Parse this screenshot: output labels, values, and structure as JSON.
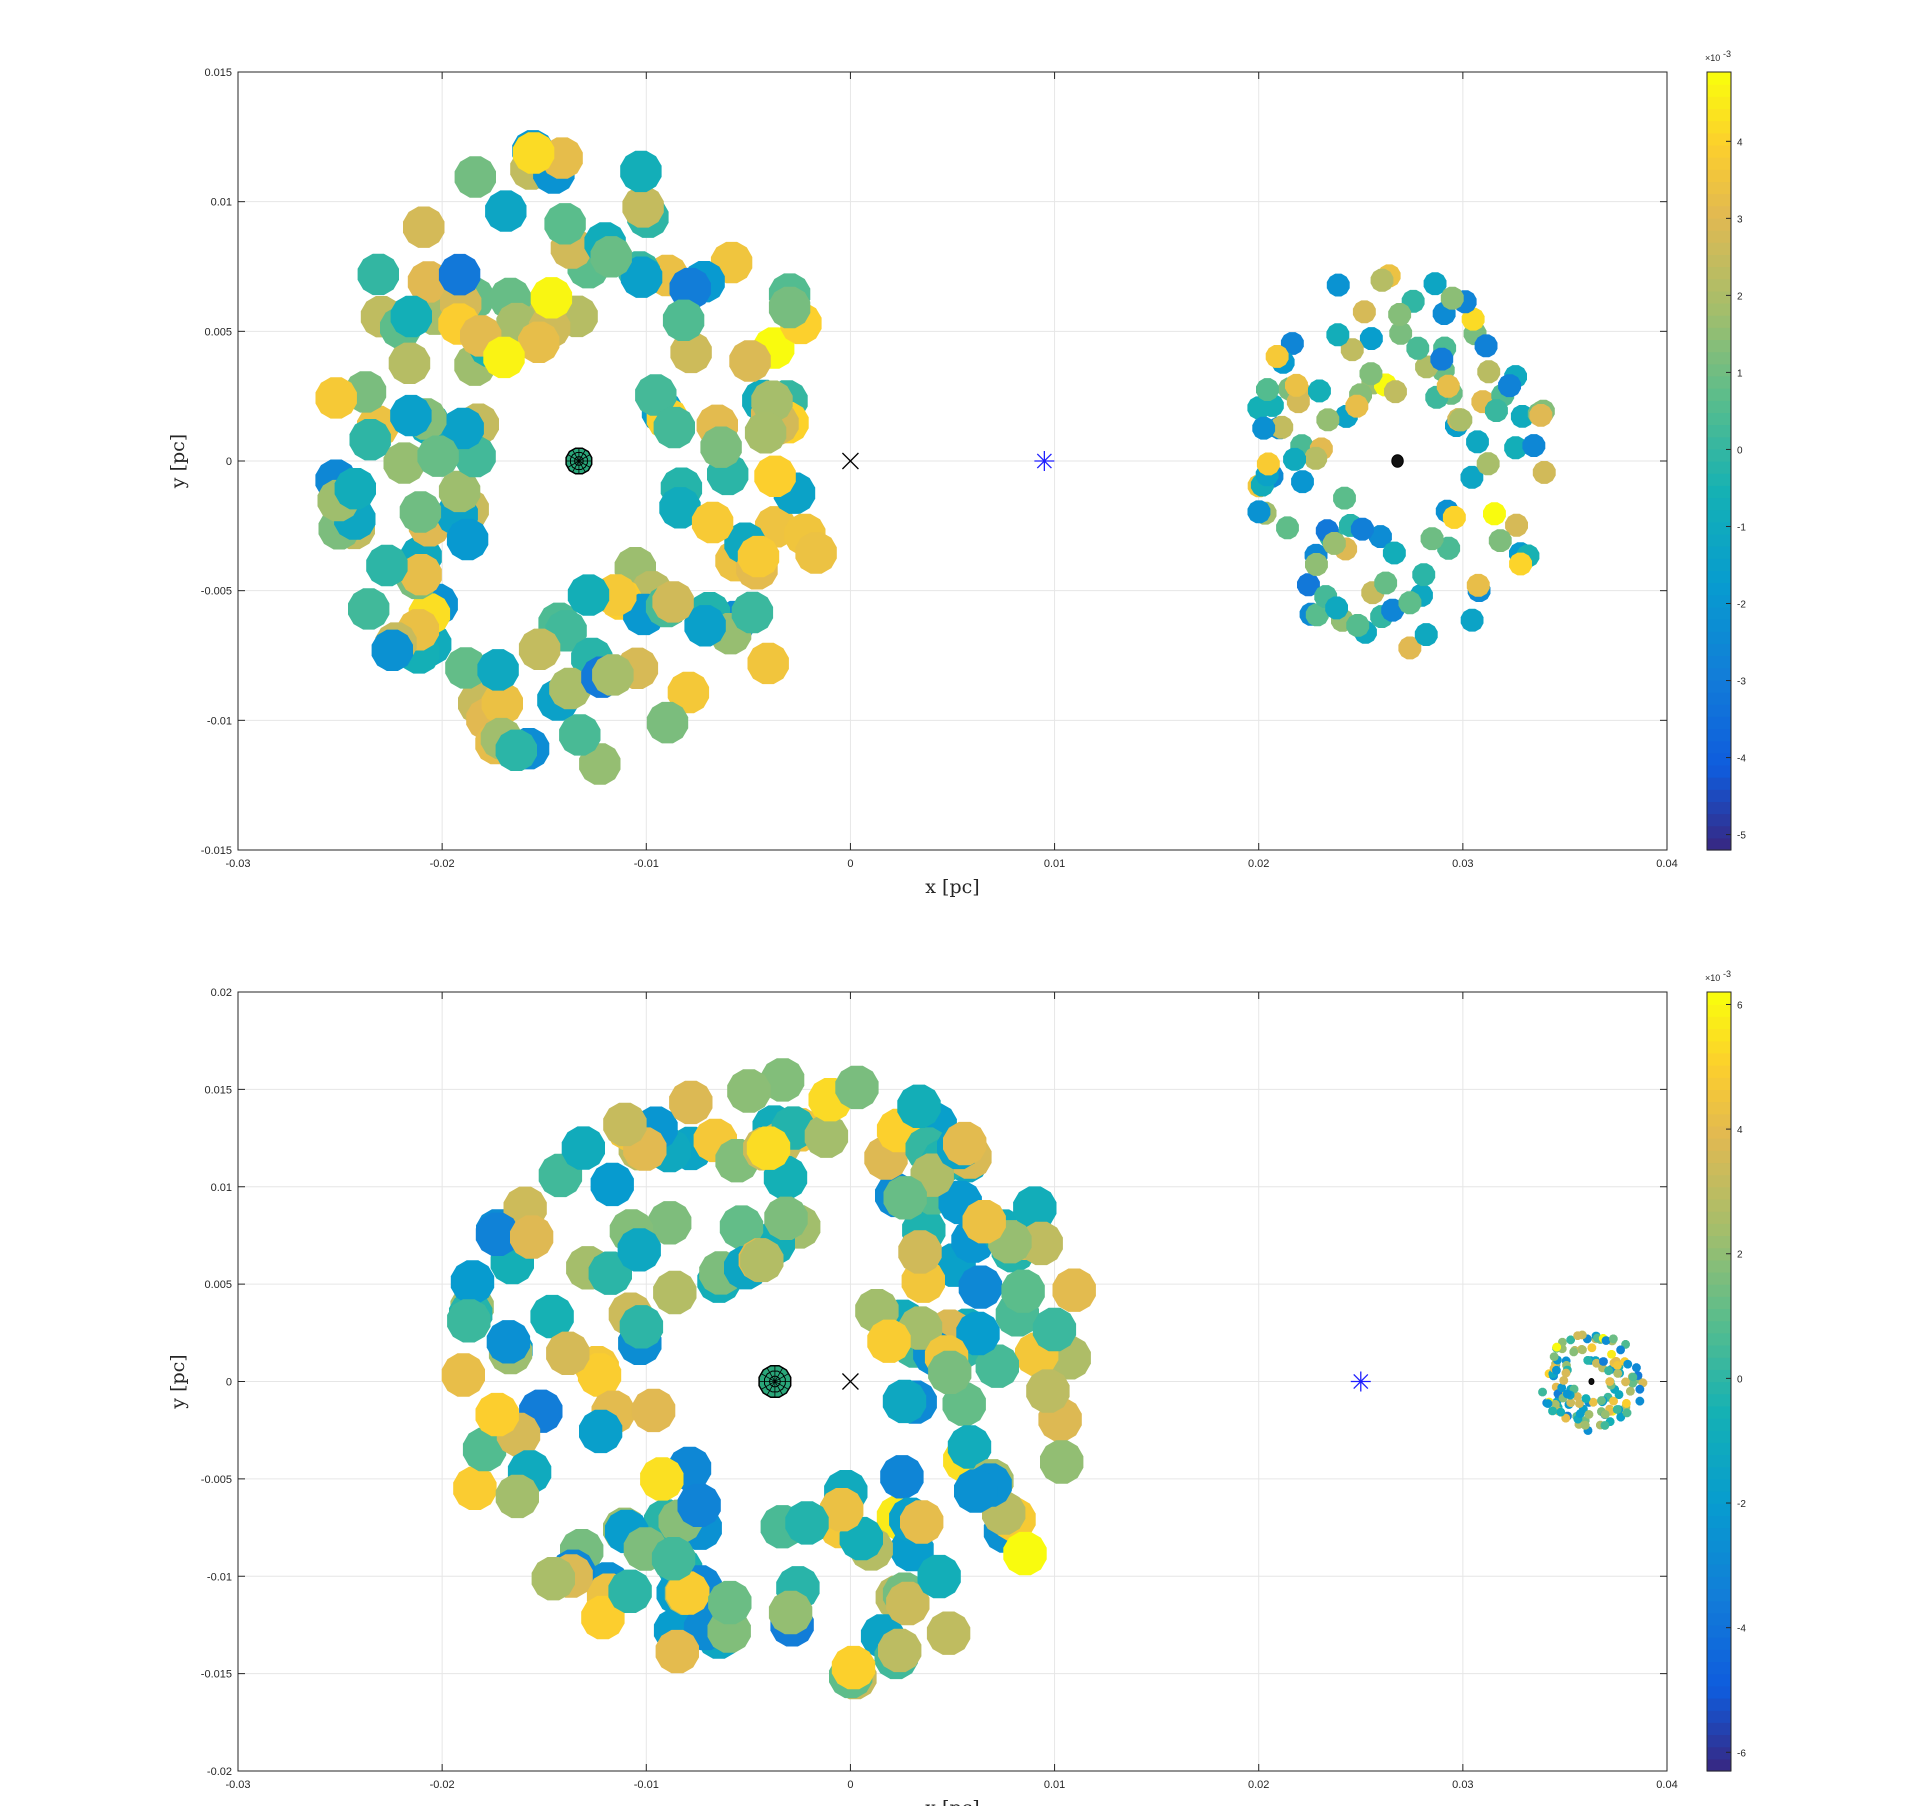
{
  "chart_data": [
    {
      "type": "scatter",
      "title": "",
      "xlabel": "x [pc]",
      "ylabel": "y [pc]",
      "xlim": [
        -0.03,
        0.04
      ],
      "ylim": [
        -0.015,
        0.015
      ],
      "x_ticks": [
        -0.03,
        -0.02,
        -0.01,
        0,
        0.01,
        0.02,
        0.03,
        0.04
      ],
      "x_tick_labels": [
        "-0.03",
        "-0.02",
        "-0.01",
        "0",
        "0.01",
        "0.02",
        "0.03",
        "0.04"
      ],
      "y_ticks": [
        -0.015,
        -0.01,
        -0.005,
        0,
        0.005,
        0.01,
        0.015
      ],
      "y_tick_labels": [
        "-0.015",
        "-0.01",
        "-0.005",
        "0",
        "0.005",
        "0.01",
        "0.015"
      ],
      "grid": true,
      "colorbar": {
        "clim": [
          -5.2,
          4.9
        ],
        "ticks": [
          -5,
          -4,
          -3,
          -2,
          -1,
          0,
          1,
          2,
          3,
          4
        ],
        "tick_labels": [
          "-5",
          "-4",
          "-3",
          "-2",
          "-1",
          "0",
          "1",
          "2",
          "3",
          "4"
        ],
        "exponent_label": "×10",
        "exponent_power": "-3",
        "colormap": "parula"
      },
      "rings": [
        {
          "center": [
            -0.0133,
            0
          ],
          "inner_radius": 0.0045,
          "outer_radius": 0.0122,
          "count": 150,
          "marker_size": 0.00105,
          "seed": 11
        },
        {
          "center": [
            0.0268,
            0
          ],
          "inner_radius": 0.0026,
          "outer_radius": 0.0074,
          "count": 120,
          "marker_size": 0.00058,
          "seed": 23
        }
      ],
      "center_bodies": [
        {
          "x": -0.0133,
          "y": 0,
          "radius": 0.00065,
          "style": "wireframe"
        },
        {
          "x": 0.0268,
          "y": 0,
          "radius": 0.00028,
          "style": "solid"
        }
      ],
      "markers": [
        {
          "x": 0,
          "y": 0,
          "symbol": "x",
          "color": "#000000"
        },
        {
          "x": 0.0095,
          "y": 0,
          "symbol": "asterisk",
          "color": "#1f1fff"
        }
      ]
    },
    {
      "type": "scatter",
      "title": "",
      "xlabel": "x [pc]",
      "ylabel": "y [pc]",
      "xlim": [
        -0.03,
        0.04
      ],
      "ylim": [
        -0.02,
        0.02
      ],
      "x_ticks": [
        -0.03,
        -0.02,
        -0.01,
        0,
        0.01,
        0.02,
        0.03,
        0.04
      ],
      "x_tick_labels": [
        "-0.03",
        "-0.02",
        "-0.01",
        "0",
        "0.01",
        "0.02",
        "0.03",
        "0.04"
      ],
      "y_ticks": [
        -0.02,
        -0.015,
        -0.01,
        -0.005,
        0,
        0.005,
        0.01,
        0.015,
        0.02
      ],
      "y_tick_labels": [
        "-0.02",
        "-0.015",
        "-0.01",
        "-0.005",
        "0",
        "0.005",
        "0.01",
        "0.015",
        "0.02"
      ],
      "grid": true,
      "colorbar": {
        "clim": [
          -6.3,
          6.2
        ],
        "ticks": [
          -6,
          -4,
          -2,
          0,
          2,
          4,
          6
        ],
        "tick_labels": [
          "-6",
          "-4",
          "-2",
          "0",
          "2",
          "4",
          "6"
        ],
        "exponent_label": "×10",
        "exponent_power": "-3",
        "colormap": "parula"
      },
      "rings": [
        {
          "center": [
            -0.0037,
            0
          ],
          "inner_radius": 0.0058,
          "outer_radius": 0.0158,
          "count": 190,
          "marker_size": 0.0011,
          "seed": 37
        },
        {
          "center": [
            0.0363,
            0
          ],
          "inner_radius": 0.0008,
          "outer_radius": 0.0026,
          "count": 130,
          "marker_size": 0.00022,
          "seed": 53
        }
      ],
      "center_bodies": [
        {
          "x": -0.0037,
          "y": 0,
          "radius": 0.0008,
          "style": "wireframe"
        },
        {
          "x": 0.0363,
          "y": 0,
          "radius": 0.00012,
          "style": "solid"
        }
      ],
      "markers": [
        {
          "x": 0,
          "y": 0,
          "symbol": "x",
          "color": "#000000"
        },
        {
          "x": 0.025,
          "y": 0,
          "symbol": "asterisk",
          "color": "#1f1fff"
        }
      ]
    }
  ]
}
